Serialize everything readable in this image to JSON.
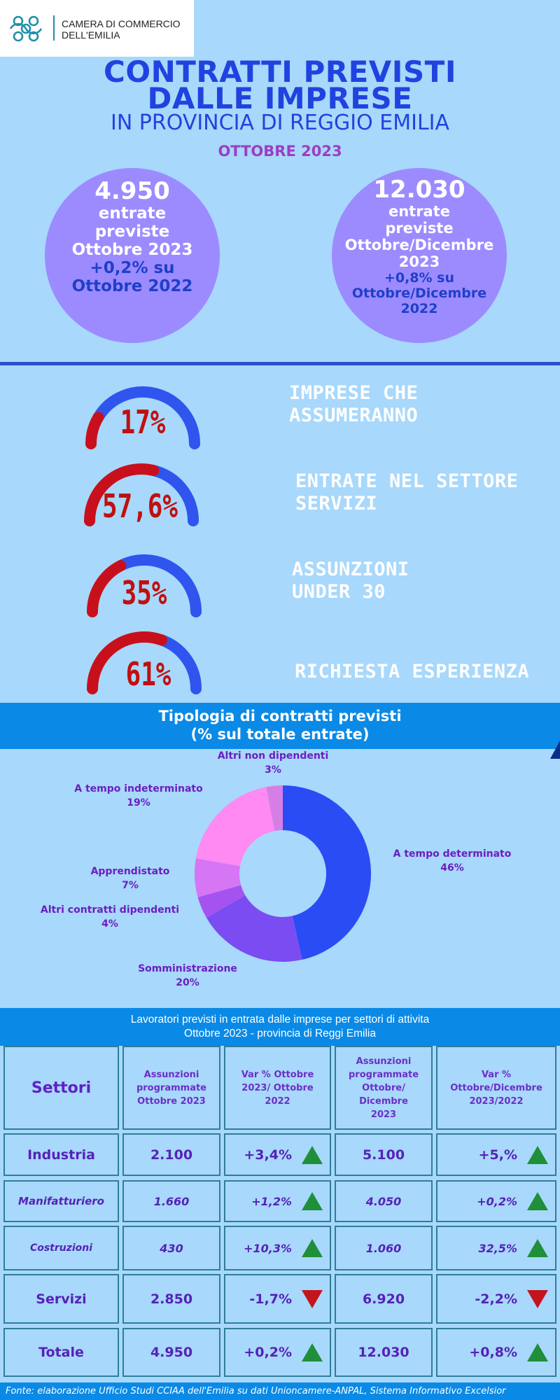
{
  "logo": {
    "line1": "CAMERA DI COMMERCIO",
    "line2": "DELL'EMILIA",
    "icon": "knot-logo-icon",
    "color": "#1f8fa7"
  },
  "header": {
    "title_line1": "CONTRATTI PREVISTI",
    "title_line2": "DALLE IMPRESE",
    "subtitle": "IN PROVINCIA DI REGGIO EMILIA",
    "period": "OTTOBRE 2023"
  },
  "stats": [
    {
      "value": "4.950",
      "line1": "entrate",
      "line2": "previste",
      "line3": "Ottobre 2023",
      "var": "+0,2% su",
      "compare": "Ottobre  2022"
    },
    {
      "value": "12.030",
      "line1": "entrate",
      "line2": "previste",
      "line3": "Ottobre/Dicembre",
      "line4": "2023",
      "var": "+0,8% su",
      "compare": "Ottobre/Dicembre",
      "compare2": "2022"
    }
  ],
  "gauges": [
    {
      "value_text": "17%",
      "fraction": 0.17,
      "label_line1": "IMPRESE CHE",
      "label_line2": "ASSUMERANNO"
    },
    {
      "value_text": "57,6%",
      "fraction": 0.576,
      "label_line1": "ENTRATE NEL SETTORE",
      "label_line2": "SERVIZI"
    },
    {
      "value_text": "35%",
      "fraction": 0.35,
      "label_line1": "ASSUNZIONI",
      "label_line2": "UNDER 30"
    },
    {
      "value_text": "61%",
      "fraction": 0.61,
      "label_line1": "RICHIESTA ESPERIENZA",
      "label_line2": ""
    }
  ],
  "gauge_colors": {
    "filled": "#c8101c",
    "empty": "#2f55ee"
  },
  "contracts": {
    "title_line1": "Tipologia di contratti previsti",
    "title_line2": "(% sul totale entrate)"
  },
  "chart_data": {
    "type": "pie",
    "title": "Tipologia di contratti previsti",
    "subtitle": "(% sul totale entrate)",
    "donut": true,
    "slices": [
      {
        "label": "A tempo determinato",
        "value": 46,
        "value_text": "46%",
        "color": "#2a4cf5"
      },
      {
        "label": "Somministrazione",
        "value": 20,
        "value_text": "20%",
        "color": "#7b4cf2"
      },
      {
        "label": "Altri contratti dipendenti",
        "value": 4,
        "value_text": "4%",
        "color": "#a553f0"
      },
      {
        "label": "Apprendistato",
        "value": 7,
        "value_text": "7%",
        "color": "#d676f5"
      },
      {
        "label": "A tempo indeterminato",
        "value": 19,
        "value_text": "19%",
        "color": "#ff8af2"
      },
      {
        "label": "Altri non dipendenti",
        "value": 3,
        "value_text": "3%",
        "color": "#d57fe6"
      }
    ]
  },
  "table": {
    "title_line1": "Lavoratori previsti in entrata dalle imprese per settori di attivita",
    "title_line2": "Ottobre 2023 - provincia di Reggi Emilia",
    "headers": [
      "Settori",
      "Assunzioni programmate Ottobre 2023",
      "Var % Ottobre 2023/ Ottobre 2022",
      "Assunzioni programmate Ottobre/ Dicembre 2023",
      "Var % Ottobre/Dicembre 2023/2022"
    ],
    "rows": [
      {
        "sector": "Industria",
        "oct": "2.100",
        "var_oct": "+3,4%",
        "trend_oct": "up",
        "q": "5.100",
        "var_q": "+5,%",
        "trend_q": "up",
        "italic": false
      },
      {
        "sector": "Manifatturiero",
        "oct": "1.660",
        "var_oct": "+1,2%",
        "trend_oct": "up",
        "q": "4.050",
        "var_q": "+0,2%",
        "trend_q": "up",
        "italic": true
      },
      {
        "sector": "Costruzioni",
        "oct": "430",
        "var_oct": "+10,3%",
        "trend_oct": "up",
        "q": "1.060",
        "var_q": "32,5%",
        "trend_q": "up",
        "italic": true
      },
      {
        "sector": "Servizi",
        "oct": "2.850",
        "var_oct": "-1,7%",
        "trend_oct": "down",
        "q": "6.920",
        "var_q": "-2,2%",
        "trend_q": "down",
        "italic": false
      },
      {
        "sector": "Totale",
        "oct": "4.950",
        "var_oct": "+0,2%",
        "trend_oct": "up",
        "q": "12.030",
        "var_q": "+0,8%",
        "trend_q": "up",
        "italic": false
      }
    ]
  },
  "footer": "Fonte: elaborazione Ufficio Studi CCIAA dell'Emilia su dati Unioncamere-ANPAL, Sistema Informativo Excelsior"
}
